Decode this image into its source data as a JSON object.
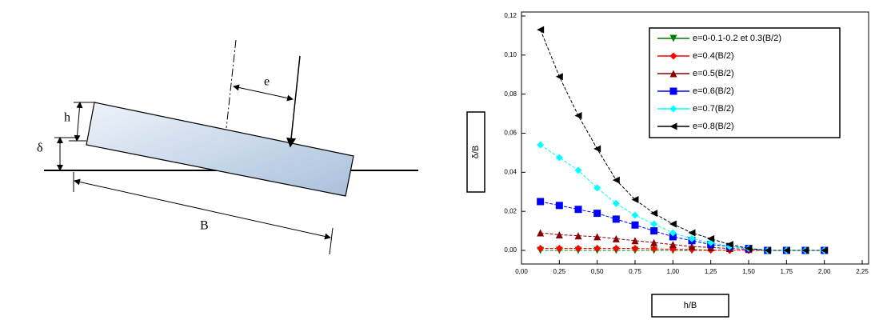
{
  "diagram": {
    "labels": {
      "e": "e",
      "h": "h",
      "delta": "δ",
      "B": "B"
    }
  },
  "chart_data": {
    "type": "line",
    "xlabel": "h/B",
    "ylabel": "δ/B",
    "x": [
      0.125,
      0.25,
      0.375,
      0.5,
      0.625,
      0.75,
      0.875,
      1.0,
      1.125,
      1.25,
      1.375,
      1.5,
      1.625,
      1.75,
      1.875,
      2.0
    ],
    "series": [
      {
        "name": "e=0-0.1-0.2 et 0.3(B/2)",
        "color": "#008000",
        "marker": "triangle-down",
        "values": [
          0,
          0,
          0,
          0,
          0,
          0,
          0,
          0,
          0,
          0,
          0,
          0,
          0,
          0,
          0,
          0
        ]
      },
      {
        "name": "e=0.4(B/2)",
        "color": "#ff0000",
        "marker": "diamond",
        "values": [
          0.001,
          0.001,
          0.001,
          0.001,
          0.001,
          0.001,
          0.0008,
          0.0006,
          0.0004,
          0.0002,
          0,
          0,
          0,
          0,
          0,
          0
        ]
      },
      {
        "name": "e=0.5(B/2)",
        "color": "#8b0000",
        "marker": "triangle-up",
        "values": [
          0.009,
          0.008,
          0.0075,
          0.007,
          0.006,
          0.005,
          0.004,
          0.003,
          0.002,
          0.0015,
          0.001,
          0.0005,
          0,
          0,
          0,
          0
        ]
      },
      {
        "name": "e=0.6(B/2)",
        "color": "#0000ff",
        "marker": "square",
        "values": [
          0.025,
          0.023,
          0.021,
          0.019,
          0.016,
          0.013,
          0.01,
          0.007,
          0.005,
          0.003,
          0.002,
          0.001,
          0,
          0,
          0,
          0
        ]
      },
      {
        "name": "e=0.7(B/2)",
        "color": "#00ffff",
        "marker": "diamond",
        "values": [
          0.054,
          0.0475,
          0.041,
          0.032,
          0.024,
          0.018,
          0.0135,
          0.009,
          0.006,
          0.004,
          0.002,
          0.001,
          0,
          0,
          0,
          0
        ]
      },
      {
        "name": "e=0.8(B/2)",
        "color": "#000000",
        "marker": "triangle-left",
        "values": [
          0.113,
          0.089,
          0.069,
          0.052,
          0.036,
          0.026,
          0.019,
          0.0135,
          0.009,
          0.006,
          0.003,
          0.001,
          0,
          0,
          0,
          0
        ]
      }
    ],
    "xlim": [
      0,
      2.25
    ],
    "xticks": [
      {
        "value": 0,
        "label": "0,00"
      },
      {
        "value": 0.25,
        "label": "0,25"
      },
      {
        "value": 0.5,
        "label": "0,50"
      },
      {
        "value": 0.75,
        "label": "0,75"
      },
      {
        "value": 1.0,
        "label": "1,00"
      },
      {
        "value": 1.25,
        "label": "1,25"
      },
      {
        "value": 1.5,
        "label": "1,50"
      },
      {
        "value": 1.75,
        "label": "1,75"
      },
      {
        "value": 2.0,
        "label": "2,00"
      },
      {
        "value": 2.25,
        "label": "2,25"
      }
    ],
    "ylim": [
      0,
      0.12
    ],
    "yticks": [
      {
        "value": 0,
        "label": "0,00"
      },
      {
        "value": 0.02,
        "label": "0,02"
      },
      {
        "value": 0.04,
        "label": "0,04"
      },
      {
        "value": 0.06,
        "label": "0,06"
      },
      {
        "value": 0.08,
        "label": "0,08"
      },
      {
        "value": 0.1,
        "label": "0,10"
      },
      {
        "value": 0.12,
        "label": "0,12"
      }
    ],
    "legend": "upper right"
  }
}
